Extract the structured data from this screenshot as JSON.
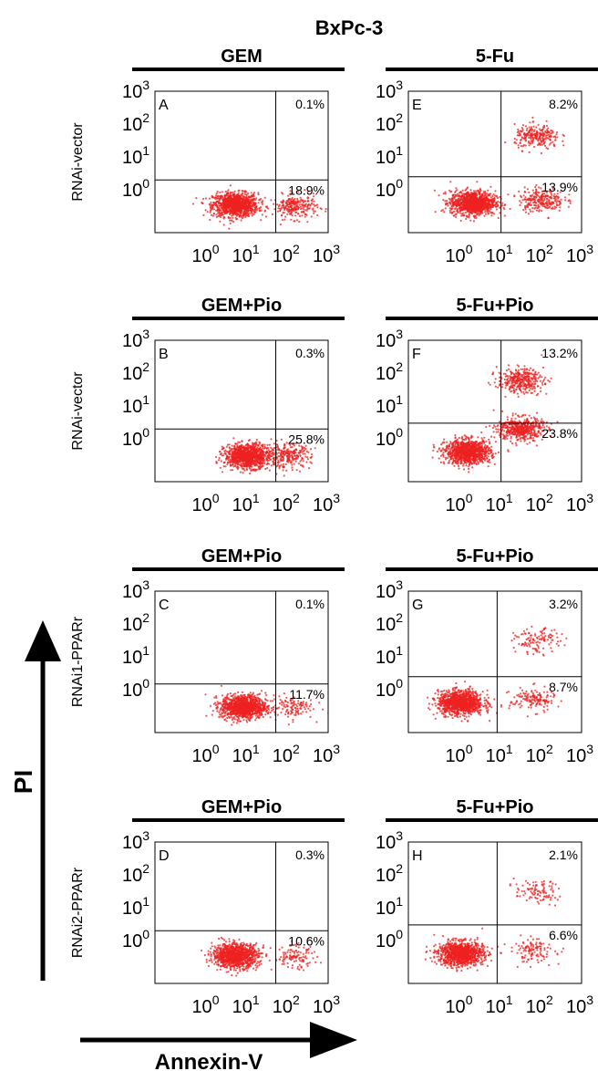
{
  "figure": {
    "title": "BxPc-3",
    "y_axis_label": "PI",
    "x_axis_label": "Annexin-V"
  },
  "tick_labels": [
    "10",
    "10",
    "10",
    "10"
  ],
  "tick_exponents": [
    "0",
    "1",
    "2",
    "3"
  ],
  "rows": [
    {
      "label": "RNAi-vector"
    },
    {
      "label": "RNAi-vector"
    },
    {
      "label": "RNAi1-PPARr"
    },
    {
      "label": "RNAi2-PPARr"
    }
  ],
  "colors": {
    "dots": "#ee2222",
    "lines": "#000000"
  },
  "chart_data": [
    {
      "type": "scatter",
      "panel": "A",
      "header": "GEM",
      "row_label": "RNAi-vector",
      "xscale": "log",
      "yscale": "log",
      "xlim": [
        0.05,
        1000
      ],
      "ylim": [
        0.05,
        1000
      ],
      "quadrant_gate": {
        "x": 50,
        "y": 2
      },
      "upper_right_pct": "0.1%",
      "lower_right_pct": "18.9%",
      "populations": [
        {
          "cx": 5,
          "cy": 0.35,
          "n": 1100
        },
        {
          "cx": 150,
          "cy": 0.3,
          "n": 250
        }
      ]
    },
    {
      "type": "scatter",
      "panel": "E",
      "header": "5-Fu",
      "row_label": "RNAi-vector",
      "xscale": "log",
      "yscale": "log",
      "xlim": [
        0.05,
        1000
      ],
      "ylim": [
        0.05,
        1000
      ],
      "quadrant_gate": {
        "x": 10,
        "y": 2.5
      },
      "upper_right_pct": "8.2%",
      "lower_right_pct": "13.9%",
      "populations": [
        {
          "cx": 2,
          "cy": 0.4,
          "n": 1100
        },
        {
          "cx": 100,
          "cy": 0.5,
          "n": 250
        },
        {
          "cx": 80,
          "cy": 40,
          "n": 250
        }
      ]
    },
    {
      "type": "scatter",
      "panel": "B",
      "header": "GEM+Pio",
      "row_label": "RNAi-vector",
      "xscale": "log",
      "yscale": "log",
      "xlim": [
        0.05,
        1000
      ],
      "ylim": [
        0.05,
        1000
      ],
      "quadrant_gate": {
        "x": 50,
        "y": 2
      },
      "upper_right_pct": "0.3%",
      "lower_right_pct": "25.8%",
      "populations": [
        {
          "cx": 10,
          "cy": 0.3,
          "n": 1100
        },
        {
          "cx": 100,
          "cy": 0.3,
          "n": 250
        }
      ]
    },
    {
      "type": "scatter",
      "panel": "F",
      "header": "5-Fu+Pio",
      "row_label": "RNAi-vector",
      "xscale": "log",
      "yscale": "log",
      "xlim": [
        0.05,
        1000
      ],
      "ylim": [
        0.05,
        1000
      ],
      "quadrant_gate": {
        "x": 10,
        "y": 3
      },
      "upper_right_pct": "13.2%",
      "lower_right_pct": "23.8%",
      "populations": [
        {
          "cx": 1.5,
          "cy": 0.4,
          "n": 1100
        },
        {
          "cx": 30,
          "cy": 2,
          "n": 500
        },
        {
          "cx": 30,
          "cy": 60,
          "n": 350
        }
      ]
    },
    {
      "type": "scatter",
      "panel": "C",
      "header": "GEM+Pio",
      "row_label": "RNAi1-PPARr",
      "xscale": "log",
      "yscale": "log",
      "xlim": [
        0.05,
        1000
      ],
      "ylim": [
        0.05,
        1000
      ],
      "quadrant_gate": {
        "x": 50,
        "y": 1.5
      },
      "upper_right_pct": "0.1%",
      "lower_right_pct": "11.7%",
      "populations": [
        {
          "cx": 8,
          "cy": 0.3,
          "n": 1100
        },
        {
          "cx": 120,
          "cy": 0.3,
          "n": 120
        }
      ]
    },
    {
      "type": "scatter",
      "panel": "G",
      "header": "5-Fu+Pio",
      "row_label": "RNAi1-PPARr",
      "xscale": "log",
      "yscale": "log",
      "xlim": [
        0.05,
        1000
      ],
      "ylim": [
        0.05,
        1000
      ],
      "quadrant_gate": {
        "x": 8,
        "y": 2.5
      },
      "upper_right_pct": "3.2%",
      "lower_right_pct": "8.7%",
      "populations": [
        {
          "cx": 1,
          "cy": 0.4,
          "n": 1100
        },
        {
          "cx": 60,
          "cy": 0.5,
          "n": 150
        },
        {
          "cx": 80,
          "cy": 30,
          "n": 120
        }
      ]
    },
    {
      "type": "scatter",
      "panel": "D",
      "header": "GEM+Pio",
      "row_label": "RNAi2-PPARr",
      "xscale": "log",
      "yscale": "log",
      "xlim": [
        0.05,
        1000
      ],
      "ylim": [
        0.05,
        1000
      ],
      "quadrant_gate": {
        "x": 50,
        "y": 2
      },
      "upper_right_pct": "0.3%",
      "lower_right_pct": "10.6%",
      "populations": [
        {
          "cx": 5,
          "cy": 0.35,
          "n": 1100
        },
        {
          "cx": 150,
          "cy": 0.3,
          "n": 120
        }
      ]
    },
    {
      "type": "scatter",
      "panel": "H",
      "header": "5-Fu+Pio",
      "row_label": "RNAi2-PPARr",
      "xscale": "log",
      "yscale": "log",
      "xlim": [
        0.05,
        1000
      ],
      "ylim": [
        0.05,
        1000
      ],
      "quadrant_gate": {
        "x": 8,
        "y": 3
      },
      "upper_right_pct": "2.1%",
      "lower_right_pct": "6.6%",
      "populations": [
        {
          "cx": 1,
          "cy": 0.4,
          "n": 1100
        },
        {
          "cx": 60,
          "cy": 0.5,
          "n": 120
        },
        {
          "cx": 80,
          "cy": 30,
          "n": 100
        }
      ]
    }
  ]
}
